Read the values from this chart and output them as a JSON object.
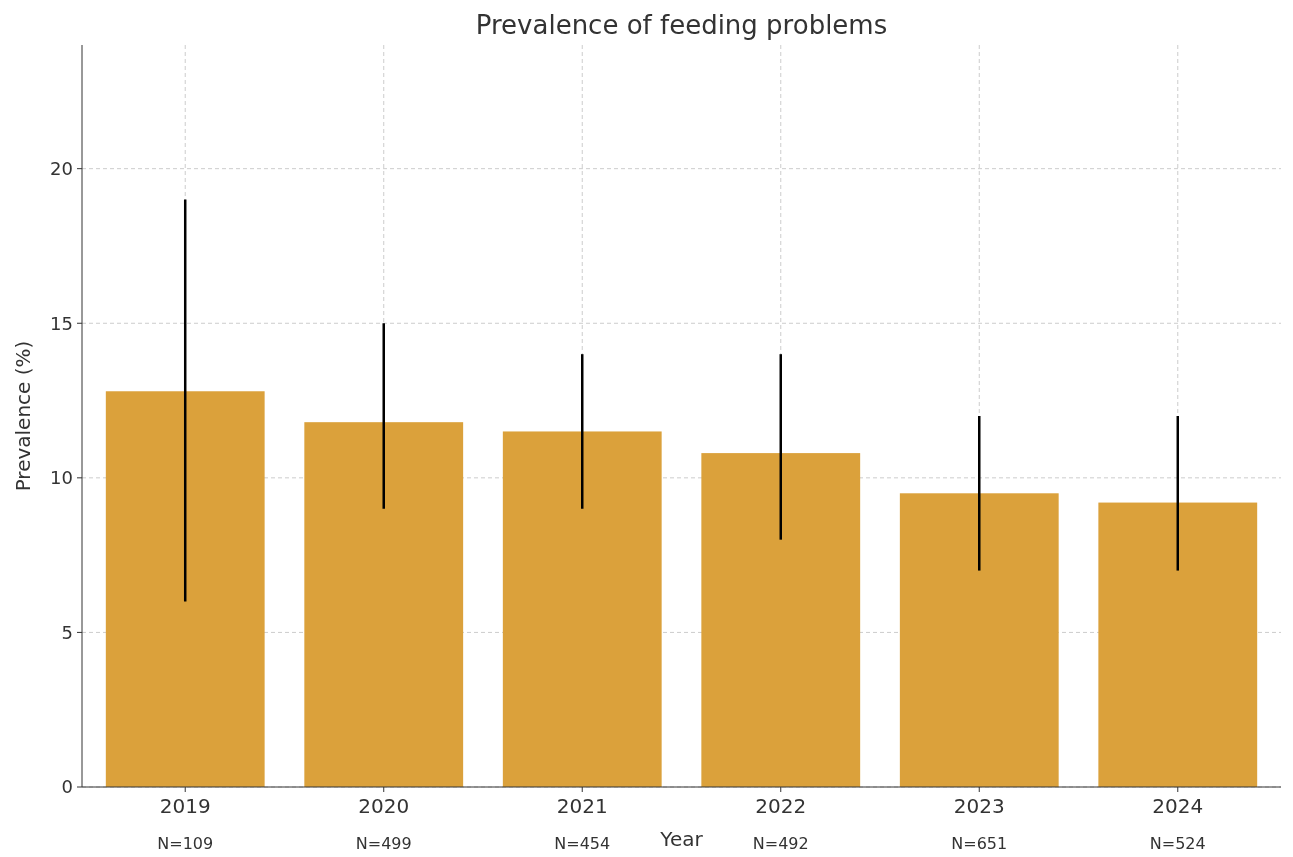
{
  "chart_data": {
    "type": "bar",
    "title": "Prevalence of feeding problems",
    "xlabel": "Year",
    "ylabel": "Prevalence (%)",
    "categories": [
      "2019",
      "2020",
      "2021",
      "2022",
      "2023",
      "2024"
    ],
    "values": [
      12.8,
      11.8,
      11.5,
      10.8,
      9.5,
      9.2
    ],
    "errors": [
      [
        6,
        19
      ],
      [
        9,
        15
      ],
      [
        9,
        14
      ],
      [
        8,
        14
      ],
      [
        7,
        12
      ],
      [
        7,
        12
      ]
    ],
    "color": "#dba13b",
    "ylim": [
      0,
      24
    ],
    "yticks": [
      0,
      5,
      10,
      15,
      20
    ],
    "grid": true,
    "annotations": [
      "N=109",
      "N=499",
      "N=454",
      "N=492",
      "N=651",
      "N=524"
    ]
  }
}
